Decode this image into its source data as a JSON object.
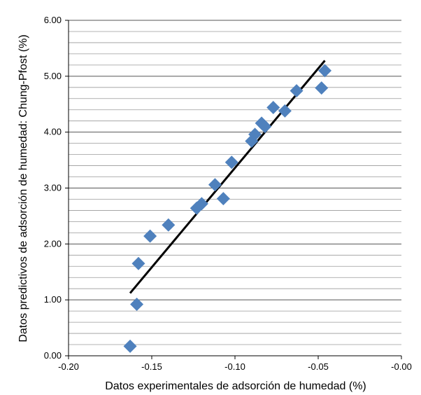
{
  "chart_data": {
    "type": "scatter",
    "title": "",
    "xlabel": "Datos experimentales de adsorción de humedad (%)",
    "ylabel": "Datos predictivos de adsorción de humedad: Chung-Pfost (%)",
    "xlim": [
      -0.2,
      0.0
    ],
    "ylim": [
      0.0,
      6.0
    ],
    "x_ticks": [
      "-0.20",
      "-0.15",
      "-0.10",
      "-0.05",
      "-0.00"
    ],
    "y_ticks": [
      "0.00",
      "1.00",
      "2.00",
      "3.00",
      "4.00",
      "5.00",
      "6.00"
    ],
    "grid": "horizontal",
    "marker_color": "#4f81bd",
    "trendline_color": "#000000",
    "series": [
      {
        "points": [
          {
            "x": -0.163,
            "y": 0.17
          },
          {
            "x": -0.159,
            "y": 0.92
          },
          {
            "x": -0.158,
            "y": 1.65
          },
          {
            "x": -0.151,
            "y": 2.14
          },
          {
            "x": -0.14,
            "y": 2.34
          },
          {
            "x": -0.123,
            "y": 2.64
          },
          {
            "x": -0.12,
            "y": 2.72
          },
          {
            "x": -0.112,
            "y": 3.06
          },
          {
            "x": -0.107,
            "y": 2.81
          },
          {
            "x": -0.102,
            "y": 3.46
          },
          {
            "x": -0.09,
            "y": 3.84
          },
          {
            "x": -0.088,
            "y": 3.96
          },
          {
            "x": -0.084,
            "y": 4.16
          },
          {
            "x": -0.082,
            "y": 4.1
          },
          {
            "x": -0.077,
            "y": 4.44
          },
          {
            "x": -0.07,
            "y": 4.38
          },
          {
            "x": -0.063,
            "y": 4.74
          },
          {
            "x": -0.048,
            "y": 4.79
          },
          {
            "x": -0.046,
            "y": 5.1
          }
        ]
      }
    ],
    "trendline": {
      "x": [
        -0.163,
        -0.046
      ],
      "y": [
        1.12,
        5.28
      ]
    }
  }
}
